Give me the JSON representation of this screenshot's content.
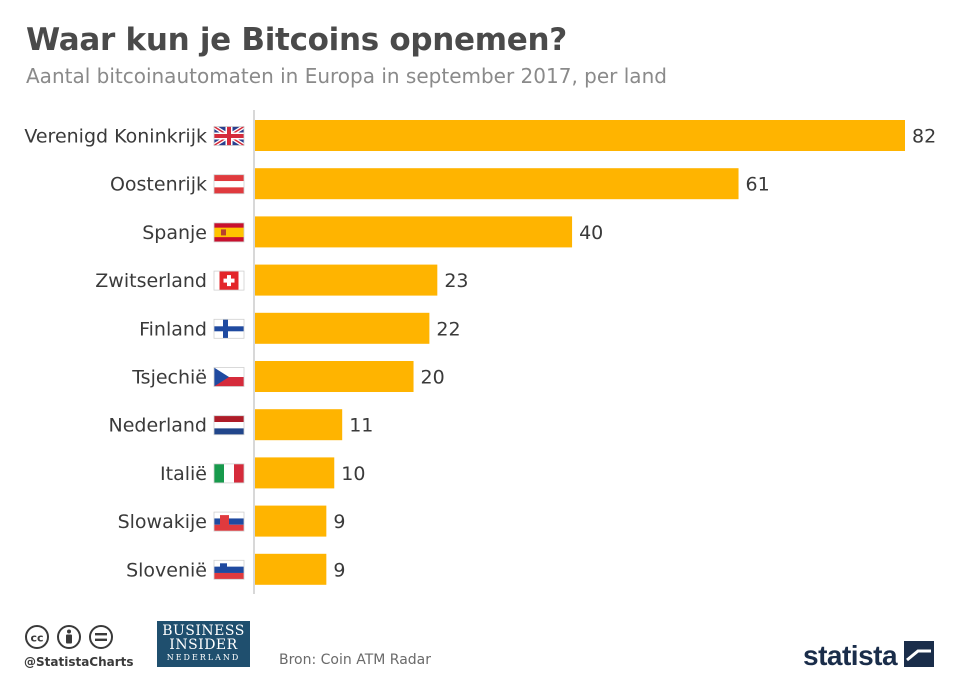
{
  "header": {
    "title": "Waar kun je Bitcoins opnemen?",
    "subtitle": "Aantal bitcoinautomaten in Europa in september 2017, per land"
  },
  "chart_data": {
    "type": "bar",
    "orientation": "horizontal",
    "categories": [
      "Verenigd Koninkrijk",
      "Oostenrijk",
      "Spanje",
      "Zwitserland",
      "Finland",
      "Tsjechië",
      "Nederland",
      "Italië",
      "Slowakije",
      "Slovenië"
    ],
    "flags": [
      "uk-flag-icon",
      "austria-flag-icon",
      "spain-flag-icon",
      "switzerland-flag-icon",
      "finland-flag-icon",
      "czechia-flag-icon",
      "netherlands-flag-icon",
      "italy-flag-icon",
      "slovakia-flag-icon",
      "slovenia-flag-icon"
    ],
    "values": [
      82,
      61,
      40,
      23,
      22,
      20,
      11,
      10,
      9,
      9
    ],
    "bar_color": "#FFB400",
    "xlim": [
      0,
      82
    ],
    "grid": false,
    "data_labels": true
  },
  "footer": {
    "handle": "@StatistaCharts",
    "partner_line1": "BUSINESS",
    "partner_line2": "INSIDER",
    "partner_line3": "NEDERLAND",
    "source": "Bron: Coin ATM Radar",
    "brand": "statista"
  },
  "colors": {
    "accent": "#FFB400",
    "brand_navy": "#1A2D4A",
    "partner_blue": "#1F4F6E"
  }
}
